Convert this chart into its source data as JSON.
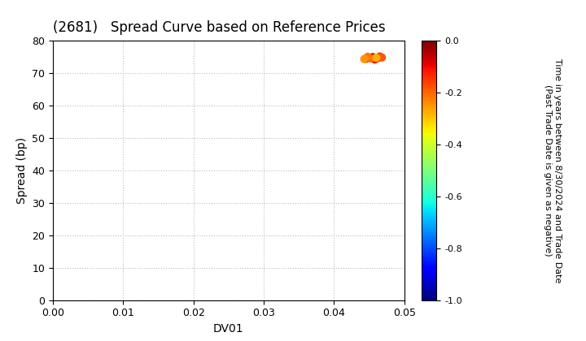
{
  "title": "(2681)   Spread Curve based on Reference Prices",
  "xlabel": "DV01",
  "ylabel": "Spread (bp)",
  "xlim": [
    0.0,
    0.05
  ],
  "ylim": [
    0,
    80
  ],
  "xticks": [
    0.0,
    0.01,
    0.02,
    0.03,
    0.04,
    0.05
  ],
  "yticks": [
    0,
    10,
    20,
    30,
    40,
    50,
    60,
    70,
    80
  ],
  "colorbar_label_line1": "Time in years between 8/30/2024 and Trade Date",
  "colorbar_label_line2": "(Past Trade Date is given as negative)",
  "colorbar_vmin": -1.0,
  "colorbar_vmax": 0.0,
  "colorbar_ticks": [
    0.0,
    -0.2,
    -0.4,
    -0.6,
    -0.8,
    -1.0
  ],
  "scatter_x": [
    0.0445,
    0.045,
    0.0455,
    0.0458,
    0.0462,
    0.0465,
    0.0468,
    0.0452,
    0.0448,
    0.0443,
    0.046
  ],
  "scatter_y": [
    74.5,
    74.8,
    75.0,
    74.3,
    74.7,
    75.2,
    74.9,
    74.6,
    75.1,
    74.4,
    74.8
  ],
  "scatter_c": [
    -0.02,
    -0.05,
    -0.08,
    -0.1,
    -0.12,
    -0.15,
    -0.18,
    -0.2,
    -0.22,
    -0.25,
    -0.28
  ],
  "background_color": "#ffffff",
  "grid_color": "#bbbbbb",
  "title_fontsize": 12,
  "axis_label_fontsize": 10,
  "tick_fontsize": 9,
  "colorbar_tick_fontsize": 8,
  "colorbar_label_fontsize": 8,
  "marker_size": 40
}
